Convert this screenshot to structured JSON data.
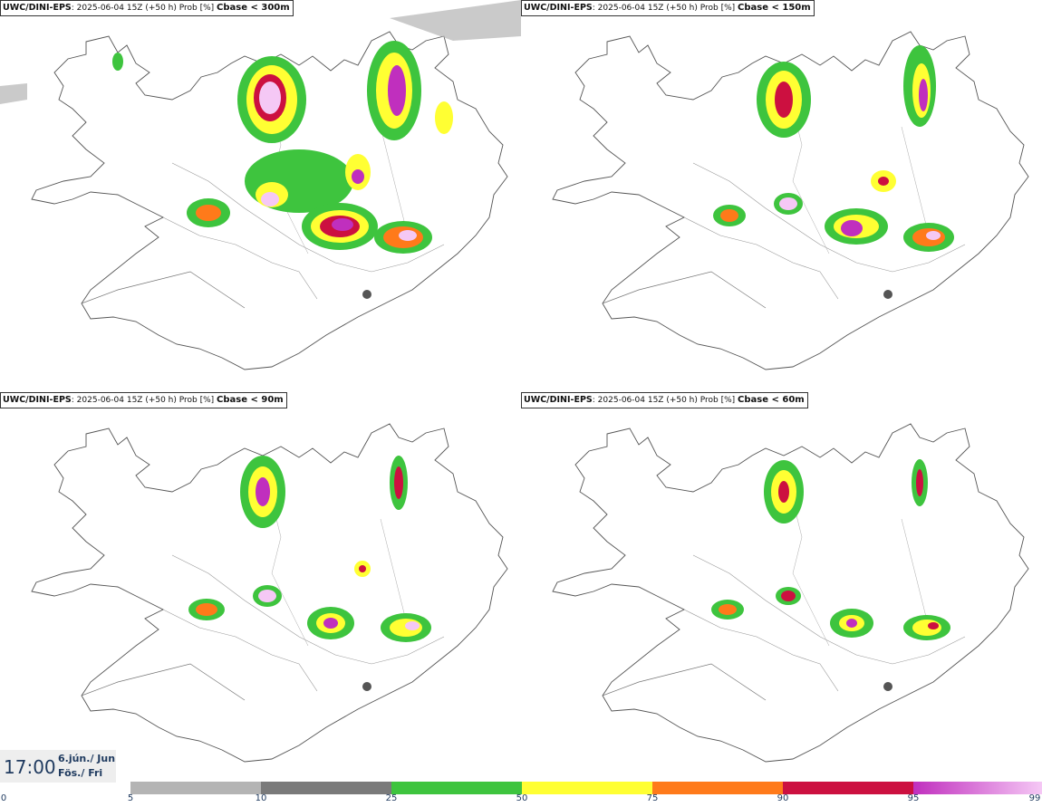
{
  "panels": [
    {
      "model": "UWC/DINI-EPS",
      "run": ": 2025-06-04 15Z (+50 h) Prob [%] ",
      "variable": "Cbase < 300m"
    },
    {
      "model": "UWC/DINI-EPS",
      "run": ": 2025-06-04 15Z (+50 h) Prob [%] ",
      "variable": "Cbase < 150m"
    },
    {
      "model": "UWC/DINI-EPS",
      "run": ": 2025-06-04 15Z (+50 h) Prob [%] ",
      "variable": "Cbase < 90m"
    },
    {
      "model": "UWC/DINI-EPS",
      "run": ": 2025-06-04 15Z (+50 h) Prob [%] ",
      "variable": "Cbase < 60m"
    }
  ],
  "valid_time": {
    "time": "17:00",
    "date_line1": "6.jún./ Jun",
    "date_line2": "Fös./ Fri"
  },
  "legend": {
    "ticks": [
      "0",
      "5",
      "10",
      "25",
      "50",
      "75",
      "90",
      "95",
      "99"
    ],
    "colors": [
      "#b4b4b4",
      "#7a7a7a",
      "#3ec43e",
      "#ffff33",
      "#ff7a1a",
      "#cc1040",
      "#c02fbe",
      "#f5c8f5"
    ]
  }
}
